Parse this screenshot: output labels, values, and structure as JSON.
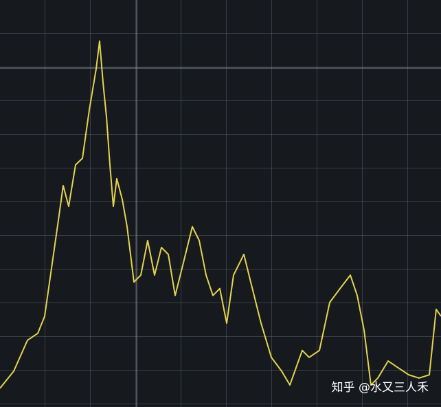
{
  "chart_data": {
    "type": "line",
    "watermark": "知乎 @水又三人禾",
    "x": [
      0,
      20,
      40,
      55,
      65,
      75,
      85,
      92,
      100,
      110,
      120,
      130,
      140,
      145,
      150,
      155,
      160,
      165,
      170,
      178,
      185,
      195,
      205,
      215,
      225,
      235,
      245,
      255,
      265,
      280,
      290,
      300,
      310,
      320,
      330,
      340,
      355,
      365,
      380,
      395,
      410,
      422,
      440,
      450,
      465,
      480,
      495,
      510,
      520,
      530,
      540,
      550,
      565,
      580,
      595,
      610,
      625,
      635,
      642
    ],
    "xlim": [
      0,
      642
    ],
    "ylim": [
      0,
      100
    ],
    "series": [
      {
        "color": "#e3d34f",
        "values": [
          4.6,
          8.8,
          16.4,
          18.1,
          22.3,
          34.1,
          45.9,
          54.4,
          49.3,
          59.5,
          61.1,
          73.0,
          83.1,
          89.9,
          79.7,
          71.3,
          59.5,
          49.3,
          56.1,
          51.0,
          44.3,
          30.7,
          32.4,
          40.9,
          32.4,
          39.2,
          37.5,
          27.4,
          34.1,
          44.3,
          40.9,
          32.4,
          27.4,
          29.1,
          20.6,
          32.4,
          37.5,
          30.7,
          20.6,
          12.2,
          8.8,
          5.4,
          13.9,
          12.2,
          13.9,
          25.7,
          29.1,
          32.4,
          27.4,
          18.9,
          5.4,
          7.1,
          11.3,
          9.6,
          7.9,
          7.1,
          7.9,
          24.0,
          22.3
        ]
      }
    ]
  }
}
